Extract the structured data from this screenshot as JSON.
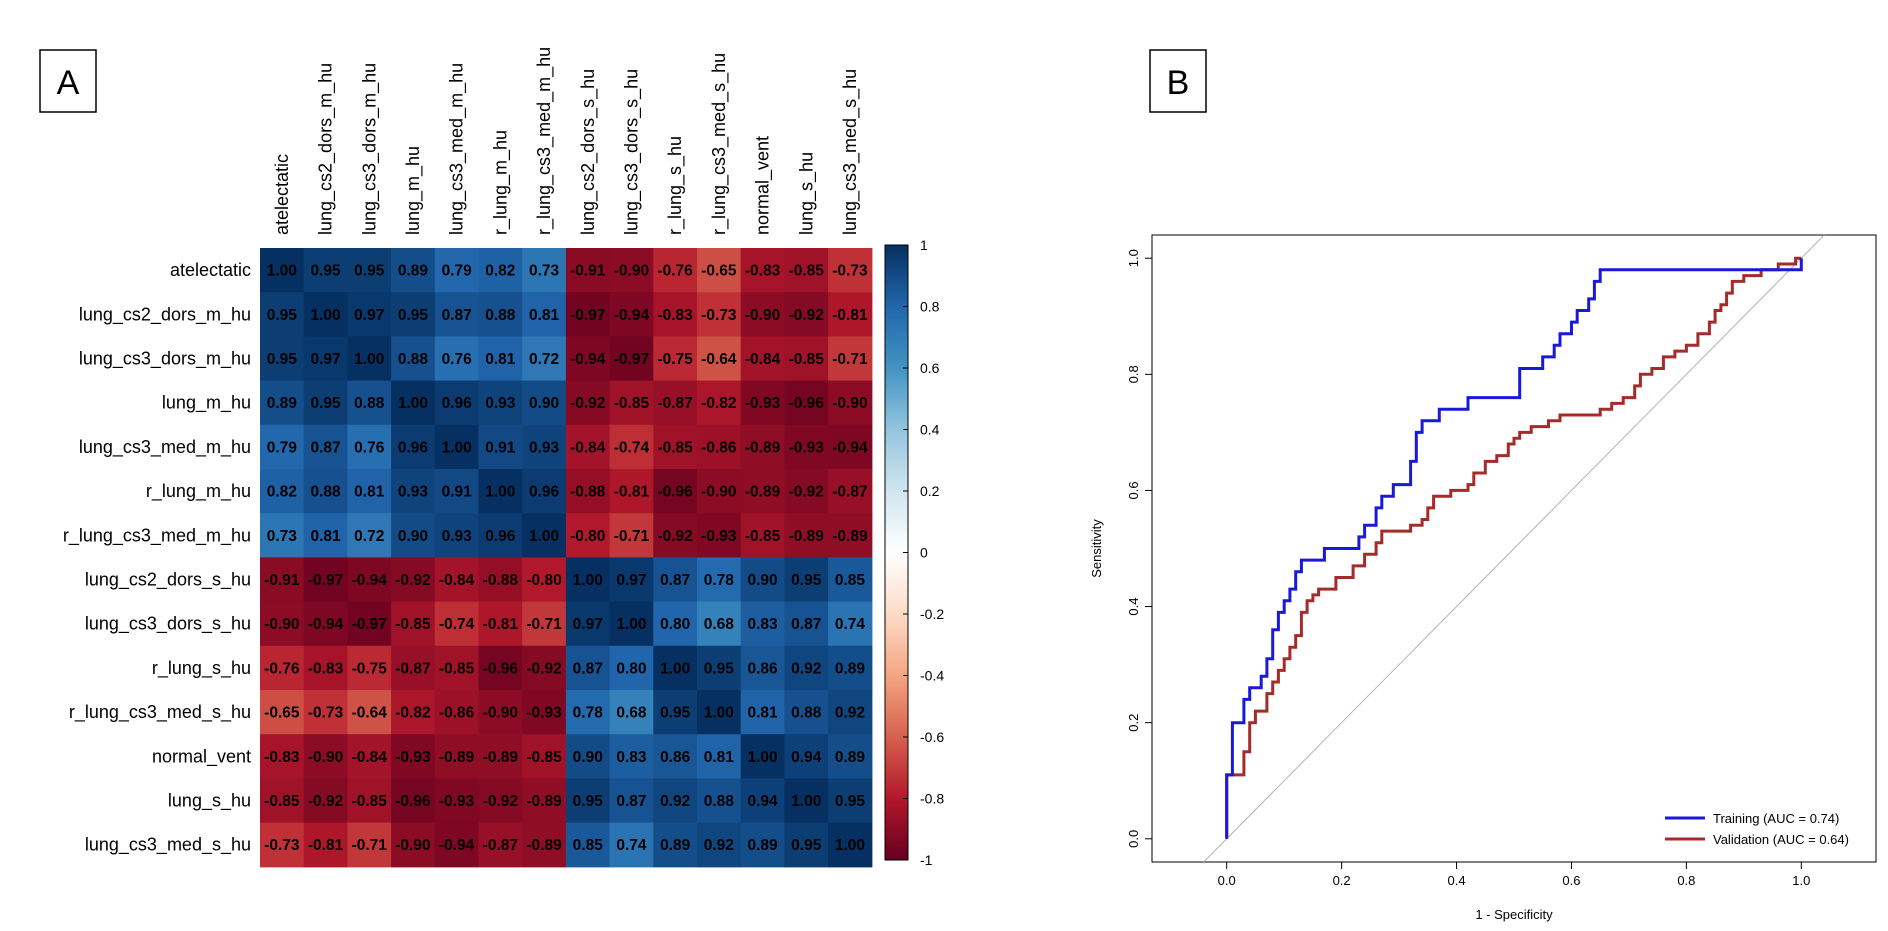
{
  "chart_data": [
    {
      "panel": "A",
      "type": "heatmap",
      "row_labels": [
        "atelectatic",
        "lung_cs2_dors_m_hu",
        "lung_cs3_dors_m_hu",
        "lung_m_hu",
        "lung_cs3_med_m_hu",
        "r_lung_m_hu",
        "r_lung_cs3_med_m_hu",
        "lung_cs2_dors_s_hu",
        "lung_cs3_dors_s_hu",
        "r_lung_s_hu",
        "r_lung_cs3_med_s_hu",
        "normal_vent",
        "lung_s_hu",
        "lung_cs3_med_s_hu"
      ],
      "col_labels": [
        "atelectatic",
        "lung_cs2_dors_m_hu",
        "lung_cs3_dors_m_hu",
        "lung_m_hu",
        "lung_cs3_med_m_hu",
        "r_lung_m_hu",
        "r_lung_cs3_med_m_hu",
        "lung_cs2_dors_s_hu",
        "lung_cs3_dors_s_hu",
        "r_lung_s_hu",
        "r_lung_cs3_med_s_hu",
        "normal_vent",
        "lung_s_hu",
        "lung_cs3_med_s_hu"
      ],
      "values": [
        [
          "1.00",
          "0.95",
          "0.95",
          "0.89",
          "0.79",
          "0.82",
          "0.73",
          "-0.91",
          "-0.90",
          "-0.76",
          "-0.65",
          "-0.83",
          "-0.85",
          "-0.73"
        ],
        [
          "0.95",
          "1.00",
          "0.97",
          "0.95",
          "0.87",
          "0.88",
          "0.81",
          "-0.97",
          "-0.94",
          "-0.83",
          "-0.73",
          "-0.90",
          "-0.92",
          "-0.81"
        ],
        [
          "0.95",
          "0.97",
          "1.00",
          "0.88",
          "0.76",
          "0.81",
          "0.72",
          "-0.94",
          "-0.97",
          "-0.75",
          "-0.64",
          "-0.84",
          "-0.85",
          "-0.71"
        ],
        [
          "0.89",
          "0.95",
          "0.88",
          "1.00",
          "0.96",
          "0.93",
          "0.90",
          "-0.92",
          "-0.85",
          "-0.87",
          "-0.82",
          "-0.93",
          "-0.96",
          "-0.90"
        ],
        [
          "0.79",
          "0.87",
          "0.76",
          "0.96",
          "1.00",
          "0.91",
          "0.93",
          "-0.84",
          "-0.74",
          "-0.85",
          "-0.86",
          "-0.89",
          "-0.93",
          "-0.94"
        ],
        [
          "0.82",
          "0.88",
          "0.81",
          "0.93",
          "0.91",
          "1.00",
          "0.96",
          "-0.88",
          "-0.81",
          "-0.96",
          "-0.90",
          "-0.89",
          "-0.92",
          "-0.87"
        ],
        [
          "0.73",
          "0.81",
          "0.72",
          "0.90",
          "0.93",
          "0.96",
          "1.00",
          "-0.80",
          "-0.71",
          "-0.92",
          "-0.93",
          "-0.85",
          "-0.89",
          "-0.89"
        ],
        [
          "-0.91",
          "-0.97",
          "-0.94",
          "-0.92",
          "-0.84",
          "-0.88",
          "-0.80",
          "1.00",
          "0.97",
          "0.87",
          "0.78",
          "0.90",
          "0.95",
          "0.85"
        ],
        [
          "-0.90",
          "-0.94",
          "-0.97",
          "-0.85",
          "-0.74",
          "-0.81",
          "-0.71",
          "0.97",
          "1.00",
          "0.80",
          "0.68",
          "0.83",
          "0.87",
          "0.74"
        ],
        [
          "-0.76",
          "-0.83",
          "-0.75",
          "-0.87",
          "-0.85",
          "-0.96",
          "-0.92",
          "0.87",
          "0.80",
          "1.00",
          "0.95",
          "0.86",
          "0.92",
          "0.89"
        ],
        [
          "-0.65",
          "-0.73",
          "-0.64",
          "-0.82",
          "-0.86",
          "-0.90",
          "-0.93",
          "0.78",
          "0.68",
          "0.95",
          "1.00",
          "0.81",
          "0.88",
          "0.92"
        ],
        [
          "-0.83",
          "-0.90",
          "-0.84",
          "-0.93",
          "-0.89",
          "-0.89",
          "-0.85",
          "0.90",
          "0.83",
          "0.86",
          "0.81",
          "1.00",
          "0.94",
          "0.89"
        ],
        [
          "-0.85",
          "-0.92",
          "-0.85",
          "-0.96",
          "-0.93",
          "-0.92",
          "-0.89",
          "0.95",
          "0.87",
          "0.92",
          "0.88",
          "0.94",
          "1.00",
          "0.95"
        ],
        [
          "-0.73",
          "-0.81",
          "-0.71",
          "-0.90",
          "-0.94",
          "-0.87",
          "-0.89",
          "0.85",
          "0.74",
          "0.89",
          "0.92",
          "0.89",
          "0.95",
          "1.00"
        ]
      ],
      "colorbar": {
        "range": [
          -1,
          1
        ],
        "tick_labels": [
          "1",
          "0.8",
          "0.6",
          "0.4",
          "0.2",
          "0",
          "-0.2",
          "-0.4",
          "-0.6",
          "-0.8",
          "-1"
        ],
        "colors": [
          "#67001f",
          "#b2182b",
          "#d6604d",
          "#f4a582",
          "#fddbc7",
          "#ffffff",
          "#d1e5f0",
          "#92c5de",
          "#4393c3",
          "#2166ac",
          "#053061"
        ]
      }
    },
    {
      "panel": "B",
      "type": "line",
      "xlabel": "1 - Specificity",
      "ylabel": "Sensitivity",
      "xlim": [
        -0.13,
        1.13
      ],
      "ylim": [
        -0.04,
        1.04
      ],
      "x_ticks": [
        "0.0",
        "0.2",
        "0.4",
        "0.6",
        "0.8",
        "1.0"
      ],
      "y_ticks": [
        "0.0",
        "0.2",
        "0.4",
        "0.6",
        "0.8",
        "1.0"
      ],
      "reference_line": [
        [
          -0.04,
          -0.04
        ],
        [
          1.04,
          1.04
        ]
      ],
      "legend_position": "bottom-right",
      "series": [
        {
          "name": "Training (AUC = 0.74)",
          "color": "#1919d6",
          "points": [
            [
              0,
              0
            ],
            [
              0,
              0.11
            ],
            [
              0.01,
              0.11
            ],
            [
              0.01,
              0.2
            ],
            [
              0.03,
              0.2
            ],
            [
              0.03,
              0.24
            ],
            [
              0.04,
              0.24
            ],
            [
              0.04,
              0.26
            ],
            [
              0.06,
              0.26
            ],
            [
              0.06,
              0.28
            ],
            [
              0.07,
              0.28
            ],
            [
              0.07,
              0.31
            ],
            [
              0.08,
              0.31
            ],
            [
              0.08,
              0.36
            ],
            [
              0.09,
              0.36
            ],
            [
              0.09,
              0.39
            ],
            [
              0.1,
              0.39
            ],
            [
              0.1,
              0.41
            ],
            [
              0.11,
              0.41
            ],
            [
              0.11,
              0.43
            ],
            [
              0.12,
              0.43
            ],
            [
              0.12,
              0.46
            ],
            [
              0.13,
              0.46
            ],
            [
              0.13,
              0.48
            ],
            [
              0.17,
              0.48
            ],
            [
              0.17,
              0.5
            ],
            [
              0.23,
              0.5
            ],
            [
              0.23,
              0.52
            ],
            [
              0.24,
              0.52
            ],
            [
              0.24,
              0.54
            ],
            [
              0.26,
              0.54
            ],
            [
              0.26,
              0.57
            ],
            [
              0.27,
              0.57
            ],
            [
              0.27,
              0.59
            ],
            [
              0.29,
              0.59
            ],
            [
              0.29,
              0.61
            ],
            [
              0.32,
              0.61
            ],
            [
              0.32,
              0.65
            ],
            [
              0.33,
              0.65
            ],
            [
              0.33,
              0.7
            ],
            [
              0.34,
              0.7
            ],
            [
              0.34,
              0.72
            ],
            [
              0.37,
              0.72
            ],
            [
              0.37,
              0.74
            ],
            [
              0.42,
              0.74
            ],
            [
              0.42,
              0.76
            ],
            [
              0.51,
              0.76
            ],
            [
              0.51,
              0.81
            ],
            [
              0.55,
              0.81
            ],
            [
              0.55,
              0.83
            ],
            [
              0.57,
              0.83
            ],
            [
              0.57,
              0.85
            ],
            [
              0.58,
              0.85
            ],
            [
              0.58,
              0.87
            ],
            [
              0.6,
              0.87
            ],
            [
              0.6,
              0.89
            ],
            [
              0.61,
              0.89
            ],
            [
              0.61,
              0.91
            ],
            [
              0.63,
              0.91
            ],
            [
              0.63,
              0.93
            ],
            [
              0.64,
              0.93
            ],
            [
              0.64,
              0.96
            ],
            [
              0.65,
              0.96
            ],
            [
              0.65,
              0.98
            ],
            [
              1.0,
              0.98
            ],
            [
              1.0,
              1.0
            ]
          ]
        },
        {
          "name": "Validation (AUC = 0.64)",
          "color": "#a52a2a",
          "points": [
            [
              0,
              0
            ],
            [
              0,
              0.11
            ],
            [
              0.03,
              0.11
            ],
            [
              0.03,
              0.15
            ],
            [
              0.04,
              0.15
            ],
            [
              0.04,
              0.2
            ],
            [
              0.05,
              0.2
            ],
            [
              0.05,
              0.22
            ],
            [
              0.07,
              0.22
            ],
            [
              0.07,
              0.25
            ],
            [
              0.08,
              0.25
            ],
            [
              0.08,
              0.27
            ],
            [
              0.09,
              0.27
            ],
            [
              0.09,
              0.29
            ],
            [
              0.1,
              0.29
            ],
            [
              0.1,
              0.31
            ],
            [
              0.11,
              0.31
            ],
            [
              0.11,
              0.33
            ],
            [
              0.12,
              0.33
            ],
            [
              0.12,
              0.35
            ],
            [
              0.13,
              0.35
            ],
            [
              0.13,
              0.39
            ],
            [
              0.14,
              0.39
            ],
            [
              0.14,
              0.41
            ],
            [
              0.15,
              0.41
            ],
            [
              0.15,
              0.42
            ],
            [
              0.16,
              0.42
            ],
            [
              0.16,
              0.43
            ],
            [
              0.19,
              0.43
            ],
            [
              0.19,
              0.45
            ],
            [
              0.22,
              0.45
            ],
            [
              0.22,
              0.47
            ],
            [
              0.24,
              0.47
            ],
            [
              0.24,
              0.49
            ],
            [
              0.26,
              0.49
            ],
            [
              0.26,
              0.51
            ],
            [
              0.27,
              0.51
            ],
            [
              0.27,
              0.53
            ],
            [
              0.32,
              0.53
            ],
            [
              0.32,
              0.54
            ],
            [
              0.34,
              0.54
            ],
            [
              0.34,
              0.55
            ],
            [
              0.35,
              0.55
            ],
            [
              0.35,
              0.57
            ],
            [
              0.36,
              0.57
            ],
            [
              0.36,
              0.59
            ],
            [
              0.39,
              0.59
            ],
            [
              0.39,
              0.6
            ],
            [
              0.42,
              0.6
            ],
            [
              0.42,
              0.61
            ],
            [
              0.43,
              0.61
            ],
            [
              0.43,
              0.63
            ],
            [
              0.45,
              0.63
            ],
            [
              0.45,
              0.65
            ],
            [
              0.47,
              0.65
            ],
            [
              0.47,
              0.66
            ],
            [
              0.49,
              0.66
            ],
            [
              0.49,
              0.68
            ],
            [
              0.5,
              0.68
            ],
            [
              0.5,
              0.69
            ],
            [
              0.51,
              0.69
            ],
            [
              0.51,
              0.7
            ],
            [
              0.53,
              0.7
            ],
            [
              0.53,
              0.71
            ],
            [
              0.56,
              0.71
            ],
            [
              0.56,
              0.72
            ],
            [
              0.58,
              0.72
            ],
            [
              0.58,
              0.73
            ],
            [
              0.65,
              0.73
            ],
            [
              0.65,
              0.74
            ],
            [
              0.67,
              0.74
            ],
            [
              0.67,
              0.75
            ],
            [
              0.69,
              0.75
            ],
            [
              0.69,
              0.76
            ],
            [
              0.71,
              0.76
            ],
            [
              0.71,
              0.78
            ],
            [
              0.72,
              0.78
            ],
            [
              0.72,
              0.8
            ],
            [
              0.74,
              0.8
            ],
            [
              0.74,
              0.81
            ],
            [
              0.76,
              0.81
            ],
            [
              0.76,
              0.83
            ],
            [
              0.78,
              0.83
            ],
            [
              0.78,
              0.84
            ],
            [
              0.8,
              0.84
            ],
            [
              0.8,
              0.85
            ],
            [
              0.82,
              0.85
            ],
            [
              0.82,
              0.87
            ],
            [
              0.84,
              0.87
            ],
            [
              0.84,
              0.89
            ],
            [
              0.85,
              0.89
            ],
            [
              0.85,
              0.91
            ],
            [
              0.86,
              0.91
            ],
            [
              0.86,
              0.92
            ],
            [
              0.87,
              0.92
            ],
            [
              0.87,
              0.94
            ],
            [
              0.88,
              0.94
            ],
            [
              0.88,
              0.96
            ],
            [
              0.9,
              0.96
            ],
            [
              0.9,
              0.97
            ],
            [
              0.93,
              0.97
            ],
            [
              0.93,
              0.98
            ],
            [
              0.96,
              0.98
            ],
            [
              0.96,
              0.99
            ],
            [
              0.99,
              0.99
            ],
            [
              0.99,
              1.0
            ],
            [
              1.0,
              1.0
            ]
          ]
        }
      ]
    }
  ],
  "panels": {
    "a_label": "A",
    "b_label": "B"
  }
}
